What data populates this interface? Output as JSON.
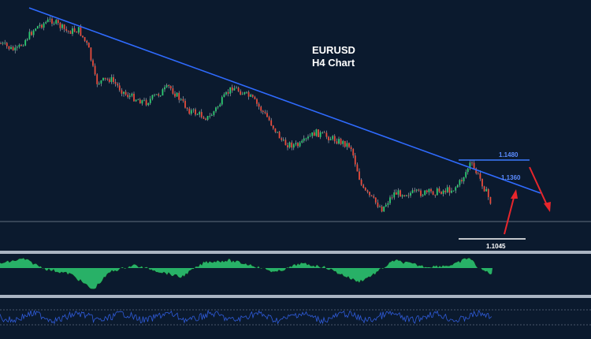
{
  "chart_data": {
    "type": "line",
    "title_lines": [
      "EURUSD",
      "H4 Chart"
    ],
    "colors": {
      "background": "#0b1a2e",
      "bull_candle": "#2ecc71",
      "bear_candle": "#e74c3c",
      "trendline": "#2f6bff",
      "resistance_level": "#3d7bff",
      "support_level": "#ffffff",
      "forecast_arrow": "#e8262c",
      "oscillator_fill": "#2ecc71",
      "rsi_line": "#2f5bd9",
      "panel_divider": "#aab4c2"
    },
    "levels": [
      {
        "label": "1.1480",
        "kind": "resistance"
      },
      {
        "label": "1.1360",
        "kind": "trendline"
      },
      {
        "label": "1.1045",
        "kind": "support"
      }
    ],
    "forecast": [
      "up",
      "down"
    ],
    "panels": [
      "price",
      "oscillator",
      "rsi"
    ]
  }
}
